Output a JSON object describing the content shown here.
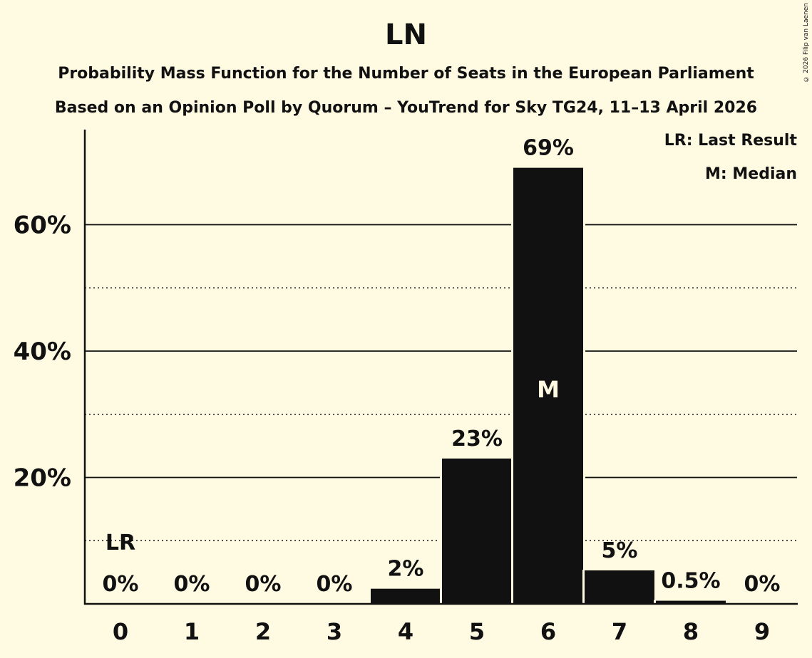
{
  "header": {
    "title": "LN",
    "subtitle_1": "Probability Mass Function for the Number of Seats in the European Parliament",
    "subtitle_2": "Based on an Opinion Poll by Quorum – YouTrend for Sky TG24, 11–13 April 2026"
  },
  "copyright": "© 2026 Filip van Laenen",
  "legend": {
    "lr": "LR: Last Result",
    "m": "M: Median"
  },
  "colors": {
    "background": "#fffae1",
    "bar": "#111111",
    "median_label": "#fffae1"
  },
  "chart_data": {
    "type": "bar",
    "title": "LN",
    "subtitle": "Probability Mass Function for the Number of Seats in the European Parliament",
    "xlabel": "",
    "ylabel": "",
    "categories": [
      "0",
      "1",
      "2",
      "3",
      "4",
      "5",
      "6",
      "7",
      "8",
      "9"
    ],
    "values": [
      0,
      0,
      0,
      0,
      2.4,
      23,
      69,
      5.3,
      0.5,
      0
    ],
    "value_labels": [
      "0%",
      "0%",
      "0%",
      "0%",
      "2%",
      "23%",
      "69%",
      "5%",
      "0.5%",
      "0%"
    ],
    "y_ticks": [
      "20%",
      "40%",
      "60%"
    ],
    "y_tick_values": [
      20,
      40,
      60
    ],
    "minor_gridlines": [
      10,
      30,
      50
    ],
    "ylim": [
      0,
      75
    ],
    "grid": true,
    "annotations": [
      {
        "category": "0",
        "label": "LR",
        "meaning": "Last Result"
      },
      {
        "category": "6",
        "label": "M",
        "meaning": "Median"
      }
    ],
    "legend_position": "top-right"
  }
}
